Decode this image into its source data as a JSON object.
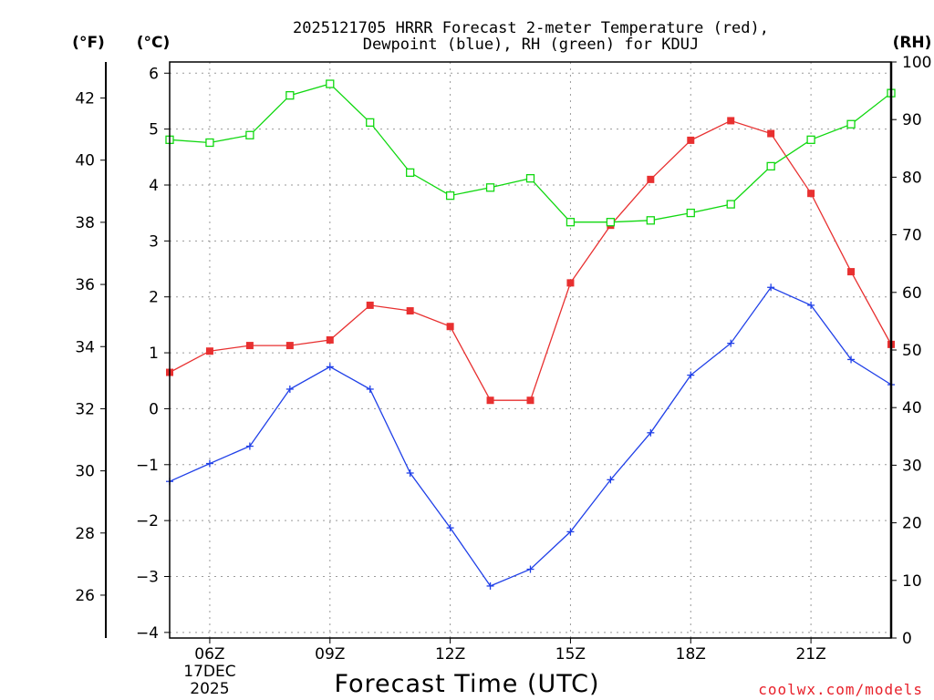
{
  "chart_data": {
    "type": "line",
    "title_line1": "2025121705 HRRR Forecast 2-meter Temperature (red),",
    "title_line2": "Dewpoint (blue), RH (green) for KDUJ",
    "xlabel": "Forecast Time (UTC)",
    "credit": "coolwx.com/models",
    "units": {
      "fahrenheit": "(°F)",
      "celsius": "(°C)",
      "rh": "(RH)"
    },
    "x_hours": [
      5,
      6,
      7,
      8,
      9,
      10,
      11,
      12,
      13,
      14,
      15,
      16,
      17,
      18,
      19,
      20,
      21,
      22,
      23
    ],
    "x_range": [
      5,
      23
    ],
    "x_ticks": [
      {
        "hour": 6,
        "label": "06Z",
        "date1": "17DEC",
        "date2": "2025"
      },
      {
        "hour": 9,
        "label": "09Z"
      },
      {
        "hour": 12,
        "label": "12Z"
      },
      {
        "hour": 15,
        "label": "15Z"
      },
      {
        "hour": 18,
        "label": "18Z"
      },
      {
        "hour": 21,
        "label": "21Z"
      }
    ],
    "celsius_range": [
      -4.1,
      6.2
    ],
    "celsius_ticks": [
      "6",
      "5",
      "4",
      "3",
      "2",
      "1",
      "0",
      "−1",
      "−2",
      "−3",
      "−4"
    ],
    "celsius_tick_values": [
      6,
      5,
      4,
      3,
      2,
      1,
      0,
      -1,
      -2,
      -3,
      -4
    ],
    "fahrenheit_ticks": [
      "42",
      "40",
      "38",
      "36",
      "34",
      "32",
      "30",
      "28",
      "26"
    ],
    "fahrenheit_tick_values": [
      42,
      40,
      38,
      36,
      34,
      32,
      30,
      28,
      26
    ],
    "rh_range": [
      0,
      100
    ],
    "rh_ticks": [
      "100",
      "90",
      "80",
      "70",
      "60",
      "50",
      "40",
      "30",
      "20",
      "10",
      "0"
    ],
    "rh_tick_values": [
      100,
      90,
      80,
      70,
      60,
      50,
      40,
      30,
      20,
      10,
      0
    ],
    "series": [
      {
        "name": "Temperature",
        "axis": "celsius",
        "color": "#e83030",
        "marker": "filled-square",
        "values": [
          0.65,
          1.03,
          1.13,
          1.13,
          1.23,
          1.85,
          1.75,
          1.47,
          0.15,
          0.15,
          2.25,
          3.28,
          4.1,
          4.8,
          5.15,
          4.92,
          3.85,
          2.45,
          1.15
        ]
      },
      {
        "name": "Dewpoint",
        "axis": "celsius",
        "color": "#2040e8",
        "marker": "plus",
        "values": [
          -1.3,
          -0.98,
          -0.67,
          0.35,
          0.75,
          0.35,
          -1.15,
          -2.13,
          -3.17,
          -2.87,
          -2.2,
          -1.27,
          -0.43,
          0.6,
          1.17,
          2.17,
          1.85,
          0.88,
          0.43
        ]
      },
      {
        "name": "RH",
        "axis": "rh",
        "color": "#10d810",
        "marker": "open-square",
        "values": [
          86.5,
          86.0,
          87.3,
          94.2,
          96.2,
          89.5,
          80.8,
          76.8,
          78.2,
          79.8,
          72.2,
          72.2,
          72.5,
          73.8,
          75.3,
          81.9,
          86.5,
          89.2,
          94.6
        ]
      }
    ]
  }
}
